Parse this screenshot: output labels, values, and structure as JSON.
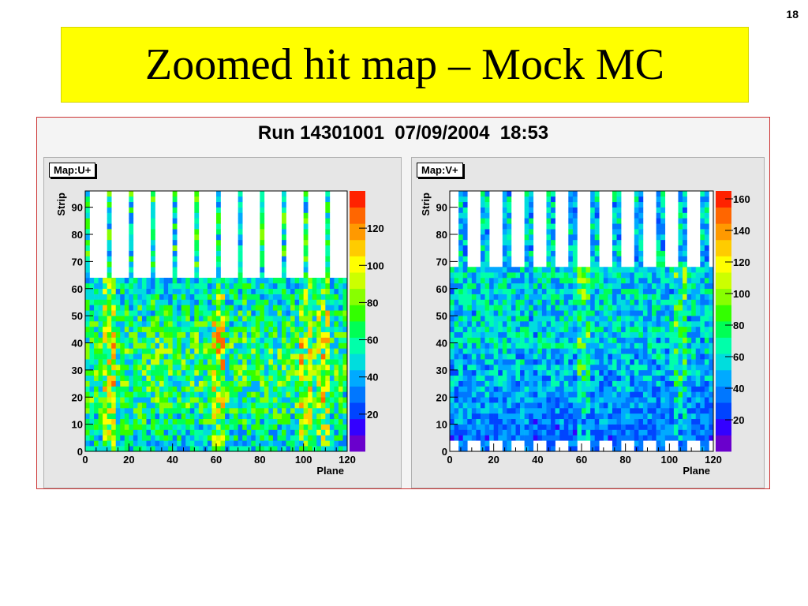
{
  "slide": {
    "number": "18",
    "title": "Zoomed hit map – Mock MC"
  },
  "canvas": {
    "header": "Run 14301001  07/09/2004  18:53"
  },
  "chart_data": [
    {
      "type": "heatmap",
      "label": "Map:U+",
      "xlabel": "Plane",
      "ylabel": "Strip",
      "xlim": [
        0,
        120
      ],
      "ylim": [
        0,
        96
      ],
      "xticks": [
        "0",
        "20",
        "40",
        "60",
        "80",
        "100",
        "120"
      ],
      "yticks": [
        "0",
        "10",
        "20",
        "30",
        "40",
        "50",
        "60",
        "70",
        "80",
        "90"
      ],
      "zlim": [
        0,
        140
      ],
      "zticks": [
        "20",
        "40",
        "60",
        "80",
        "100",
        "120"
      ],
      "filled_strips_max": 64,
      "upper_columns_planes": [
        1,
        11,
        21,
        31,
        41,
        51,
        61,
        71,
        81,
        91,
        101,
        111
      ],
      "hot_band_planes": [
        10,
        12,
        60,
        62,
        100,
        102,
        108,
        110
      ],
      "typical_occupancy": 60
    },
    {
      "type": "heatmap",
      "label": "Map:V+",
      "xlabel": "Plane",
      "ylabel": "Strip",
      "xlim": [
        0,
        120
      ],
      "ylim": [
        0,
        96
      ],
      "xticks": [
        "0",
        "20",
        "40",
        "60",
        "80",
        "100",
        "120"
      ],
      "yticks": [
        "0",
        "10",
        "20",
        "30",
        "40",
        "50",
        "60",
        "70",
        "80",
        "90"
      ],
      "zlim": [
        0,
        165
      ],
      "zticks": [
        "20",
        "40",
        "60",
        "80",
        "100",
        "120",
        "140",
        "160"
      ],
      "filled_strips_max": 68,
      "filled_strips_min": 4,
      "upper_columns_planes": [
        6,
        16,
        26,
        36,
        46,
        56,
        66,
        76,
        86,
        96,
        106,
        116
      ],
      "hot_band_planes": [
        60,
        62,
        104,
        106
      ],
      "typical_occupancy": 55
    }
  ],
  "palette": [
    "#6a00cc",
    "#3300ff",
    "#0044ff",
    "#0077ff",
    "#00aaff",
    "#00dddd",
    "#00ffaa",
    "#00ff55",
    "#33ff00",
    "#88ff00",
    "#ccff00",
    "#ffff00",
    "#ffcc00",
    "#ff9900",
    "#ff6600",
    "#ff2200"
  ]
}
